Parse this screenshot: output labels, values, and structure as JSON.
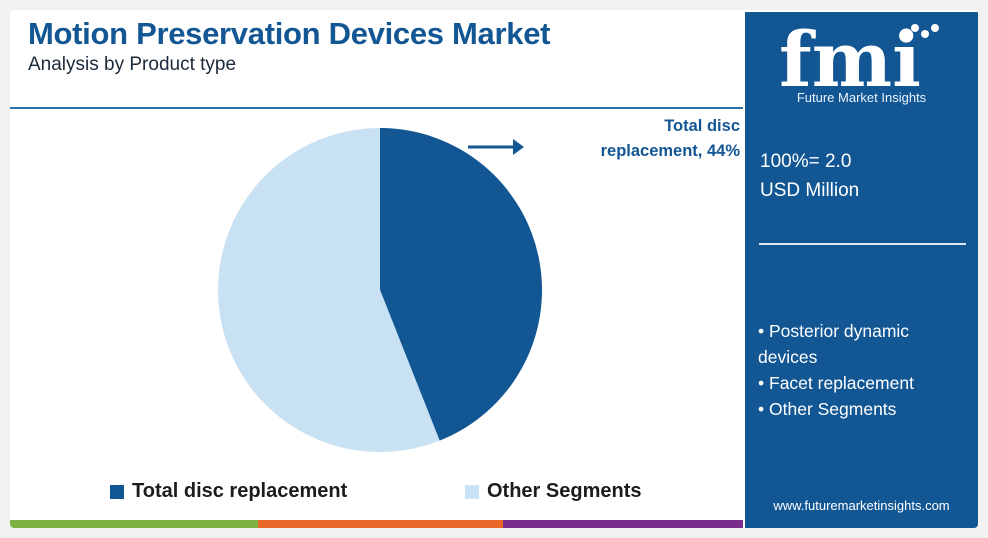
{
  "header": {
    "title": "Motion Preservation Devices Market",
    "subtitle": "Analysis by Product type"
  },
  "chart_data": {
    "type": "pie",
    "categories": [
      "Total disc replacement",
      "Other Segments"
    ],
    "values": [
      44,
      56
    ],
    "unit": "%",
    "colors": [
      "#125694",
      "#c8e1f3"
    ],
    "annotation": "Total disc replacement, 44%",
    "legend": [
      "Total disc replacement",
      "Other Segments"
    ],
    "legend_position": "bottom"
  },
  "callout": {
    "line1": "Total disc",
    "line2": "replacement, 44%"
  },
  "legend": {
    "item1": "Total disc replacement",
    "item2": "Other Segments"
  },
  "sidebar": {
    "logo_text": "fmi",
    "logo_tagline": "Future Market Insights",
    "total_line1": "100%= 2.0",
    "total_line2": "USD Million",
    "bullets": [
      "Posterior dynamic devices",
      "Facet replacement",
      "Other Segments"
    ],
    "website": "www.futuremarketinsights.com"
  },
  "colors": {
    "brand_blue": "#125694",
    "light_blue": "#c8e1f3",
    "accent_green": "#7cb342",
    "accent_orange": "#e8682a",
    "accent_purple": "#7b2d8e"
  }
}
